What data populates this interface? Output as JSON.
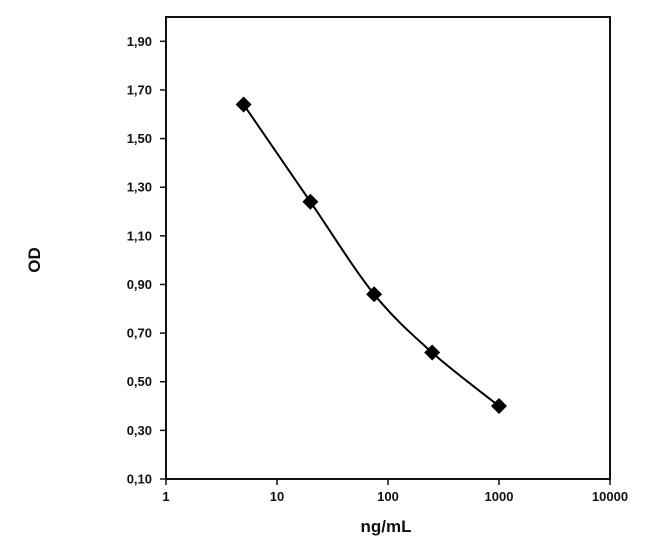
{
  "chart_data": {
    "type": "line",
    "x_scale": "log",
    "xlabel": "ng/mL",
    "ylabel": "OD",
    "xlim": [
      1,
      10000
    ],
    "ylim": [
      0.1,
      2.0
    ],
    "x_ticks": [
      1,
      10,
      100,
      1000,
      10000
    ],
    "x_tick_labels": [
      "1",
      "10",
      "100",
      "1000",
      "10000"
    ],
    "y_ticks": [
      0.1,
      0.3,
      0.5,
      0.7,
      0.9,
      1.1,
      1.3,
      1.5,
      1.7,
      1.9
    ],
    "y_tick_labels": [
      "0,10",
      "0,30",
      "0,50",
      "0,70",
      "0,90",
      "1,10",
      "1,30",
      "1,50",
      "1,70",
      "1,90"
    ],
    "grid": false,
    "legend": "none",
    "series": [
      {
        "x": [
          5,
          20,
          75,
          250,
          1000
        ],
        "y": [
          1.64,
          1.24,
          0.86,
          0.62,
          0.4
        ],
        "marker": "diamond",
        "color": "#000000",
        "smooth": true
      }
    ]
  }
}
